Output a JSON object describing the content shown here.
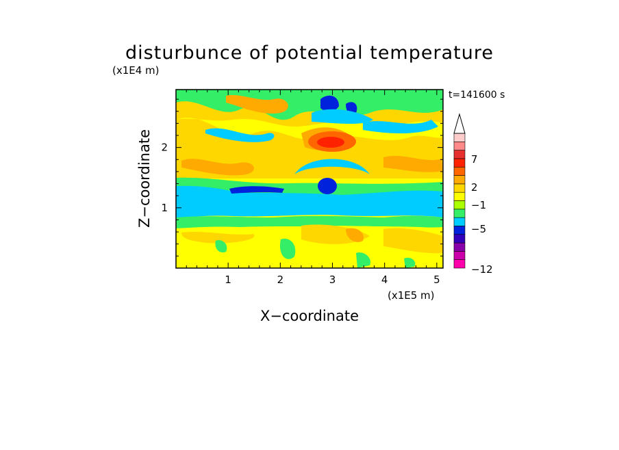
{
  "chart_data": {
    "type": "heatmap",
    "title": "disturbunce of potential temperature",
    "xlabel": "X−coordinate",
    "ylabel": "Z−coordinate",
    "x_scale_label": "(x1E5 m)",
    "y_scale_label": "(x1E4 m)",
    "time_label": "t=141600 s",
    "xlim": [
      0,
      5.12
    ],
    "ylim": [
      0,
      2.96
    ],
    "x_ticks": [
      "1",
      "2",
      "3",
      "4",
      "5"
    ],
    "y_ticks": [
      "1",
      "2"
    ],
    "colorbar": {
      "labels": [
        "7",
        "2",
        "−1",
        "−5",
        "−12"
      ],
      "colors": [
        "#ff00aa",
        "#cc00aa",
        "#8800aa",
        "#3300bb",
        "#0022dd",
        "#00ccff",
        "#33ee66",
        "#aaff00",
        "#ffff00",
        "#ffd700",
        "#ffaa00",
        "#ff6600",
        "#ff2200",
        "#e63030",
        "#ff8888",
        "#ffcccc"
      ],
      "extend": "max"
    }
  }
}
